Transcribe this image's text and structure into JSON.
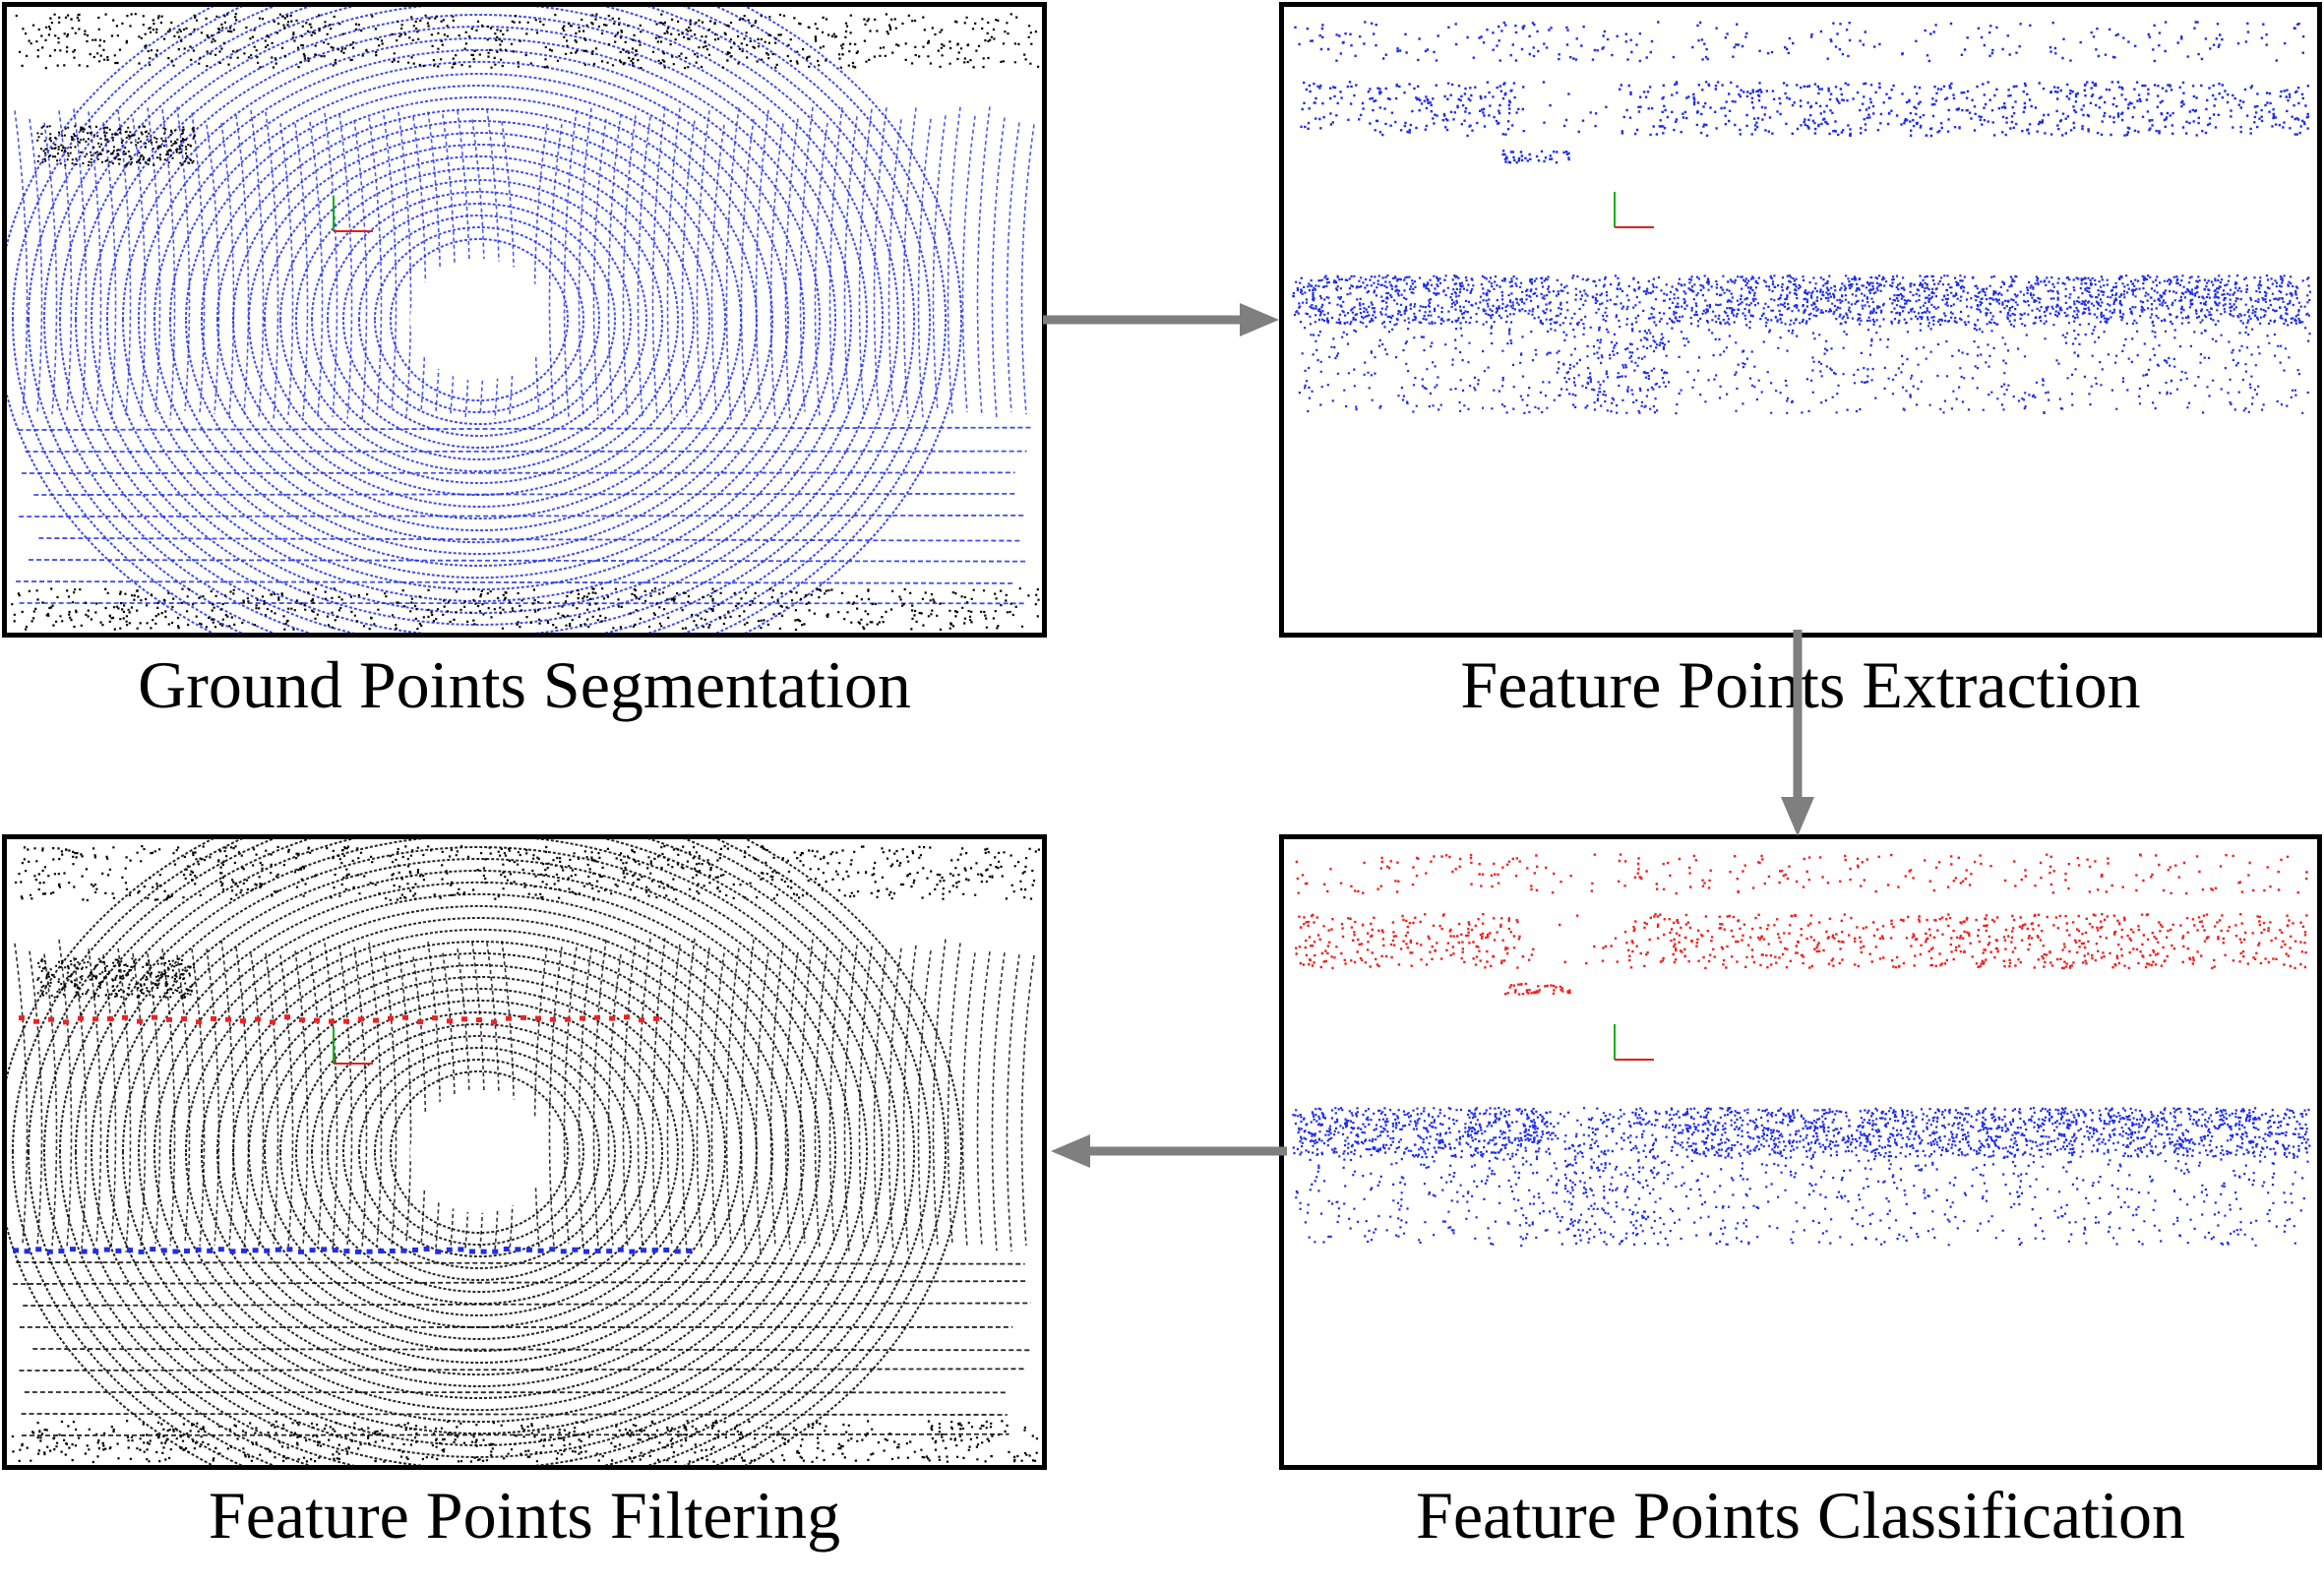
{
  "stages": [
    {
      "id": "ground-segmentation",
      "caption": "Ground Points Segmentation",
      "scene": "full",
      "ground_color": "#1f2ee8",
      "object_color": "#000000"
    },
    {
      "id": "feature-extraction",
      "caption": "Feature Points Extraction",
      "scene": "features",
      "upper_color": "#1f2ee8",
      "lower_color": "#1f2ee8"
    },
    {
      "id": "feature-classification",
      "caption": "Feature Points Classification",
      "scene": "features",
      "upper_color": "#ee2222",
      "lower_color": "#1f2ee8"
    },
    {
      "id": "feature-filtering",
      "caption": "Feature Points Filtering",
      "scene": "full",
      "ground_color": "#000000",
      "object_color": "#000000",
      "highlight_upper": "#ee2222",
      "highlight_lower": "#1f2ee8"
    }
  ],
  "flow": [
    "ground-segmentation",
    "feature-extraction",
    "feature-classification",
    "feature-filtering"
  ],
  "colors": {
    "arrow": "#7f7f7f",
    "border": "#000000",
    "axis_x": "#e02020",
    "axis_y": "#10b010"
  }
}
